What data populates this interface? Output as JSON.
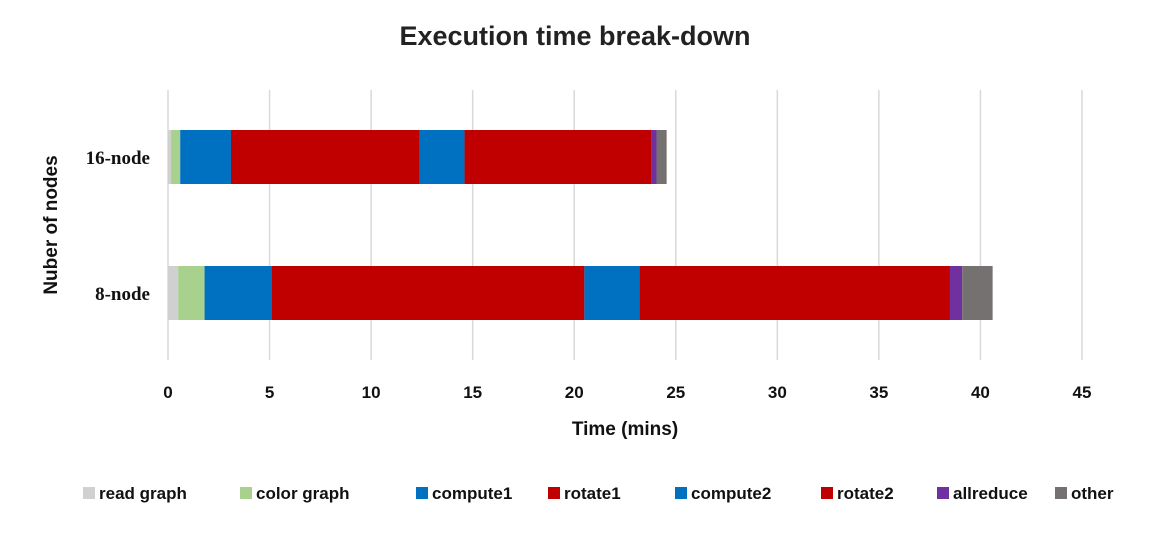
{
  "chart_data": {
    "type": "bar",
    "orientation": "horizontal",
    "stacked": true,
    "title": "Execution time break-down",
    "xlabel": "Time (mins)",
    "ylabel": "Nuber of nodes",
    "xlim": [
      0,
      45
    ],
    "xticks": [
      0,
      5,
      10,
      15,
      20,
      25,
      30,
      35,
      40,
      45
    ],
    "grid": "vertical",
    "legend_position": "bottom",
    "categories": [
      "16-node",
      "8-node"
    ],
    "series": [
      {
        "name": "read graph",
        "color": "#d0d0d0",
        "values": [
          0.15,
          0.5
        ]
      },
      {
        "name": "color graph",
        "color": "#a9d18e",
        "values": [
          0.45,
          1.3
        ]
      },
      {
        "name": "compute1",
        "color": "#0070c0",
        "values": [
          2.5,
          3.3
        ]
      },
      {
        "name": "rotate1",
        "color": "#c00000",
        "values": [
          9.3,
          15.4
        ]
      },
      {
        "name": "compute2",
        "color": "#0070c0",
        "values": [
          2.2,
          2.7
        ]
      },
      {
        "name": "rotate2",
        "color": "#c00000",
        "values": [
          9.2,
          15.3
        ]
      },
      {
        "name": "allreduce",
        "color": "#7030a0",
        "values": [
          0.25,
          0.6
        ]
      },
      {
        "name": "other",
        "color": "#767171",
        "values": [
          0.5,
          1.5
        ]
      }
    ]
  }
}
